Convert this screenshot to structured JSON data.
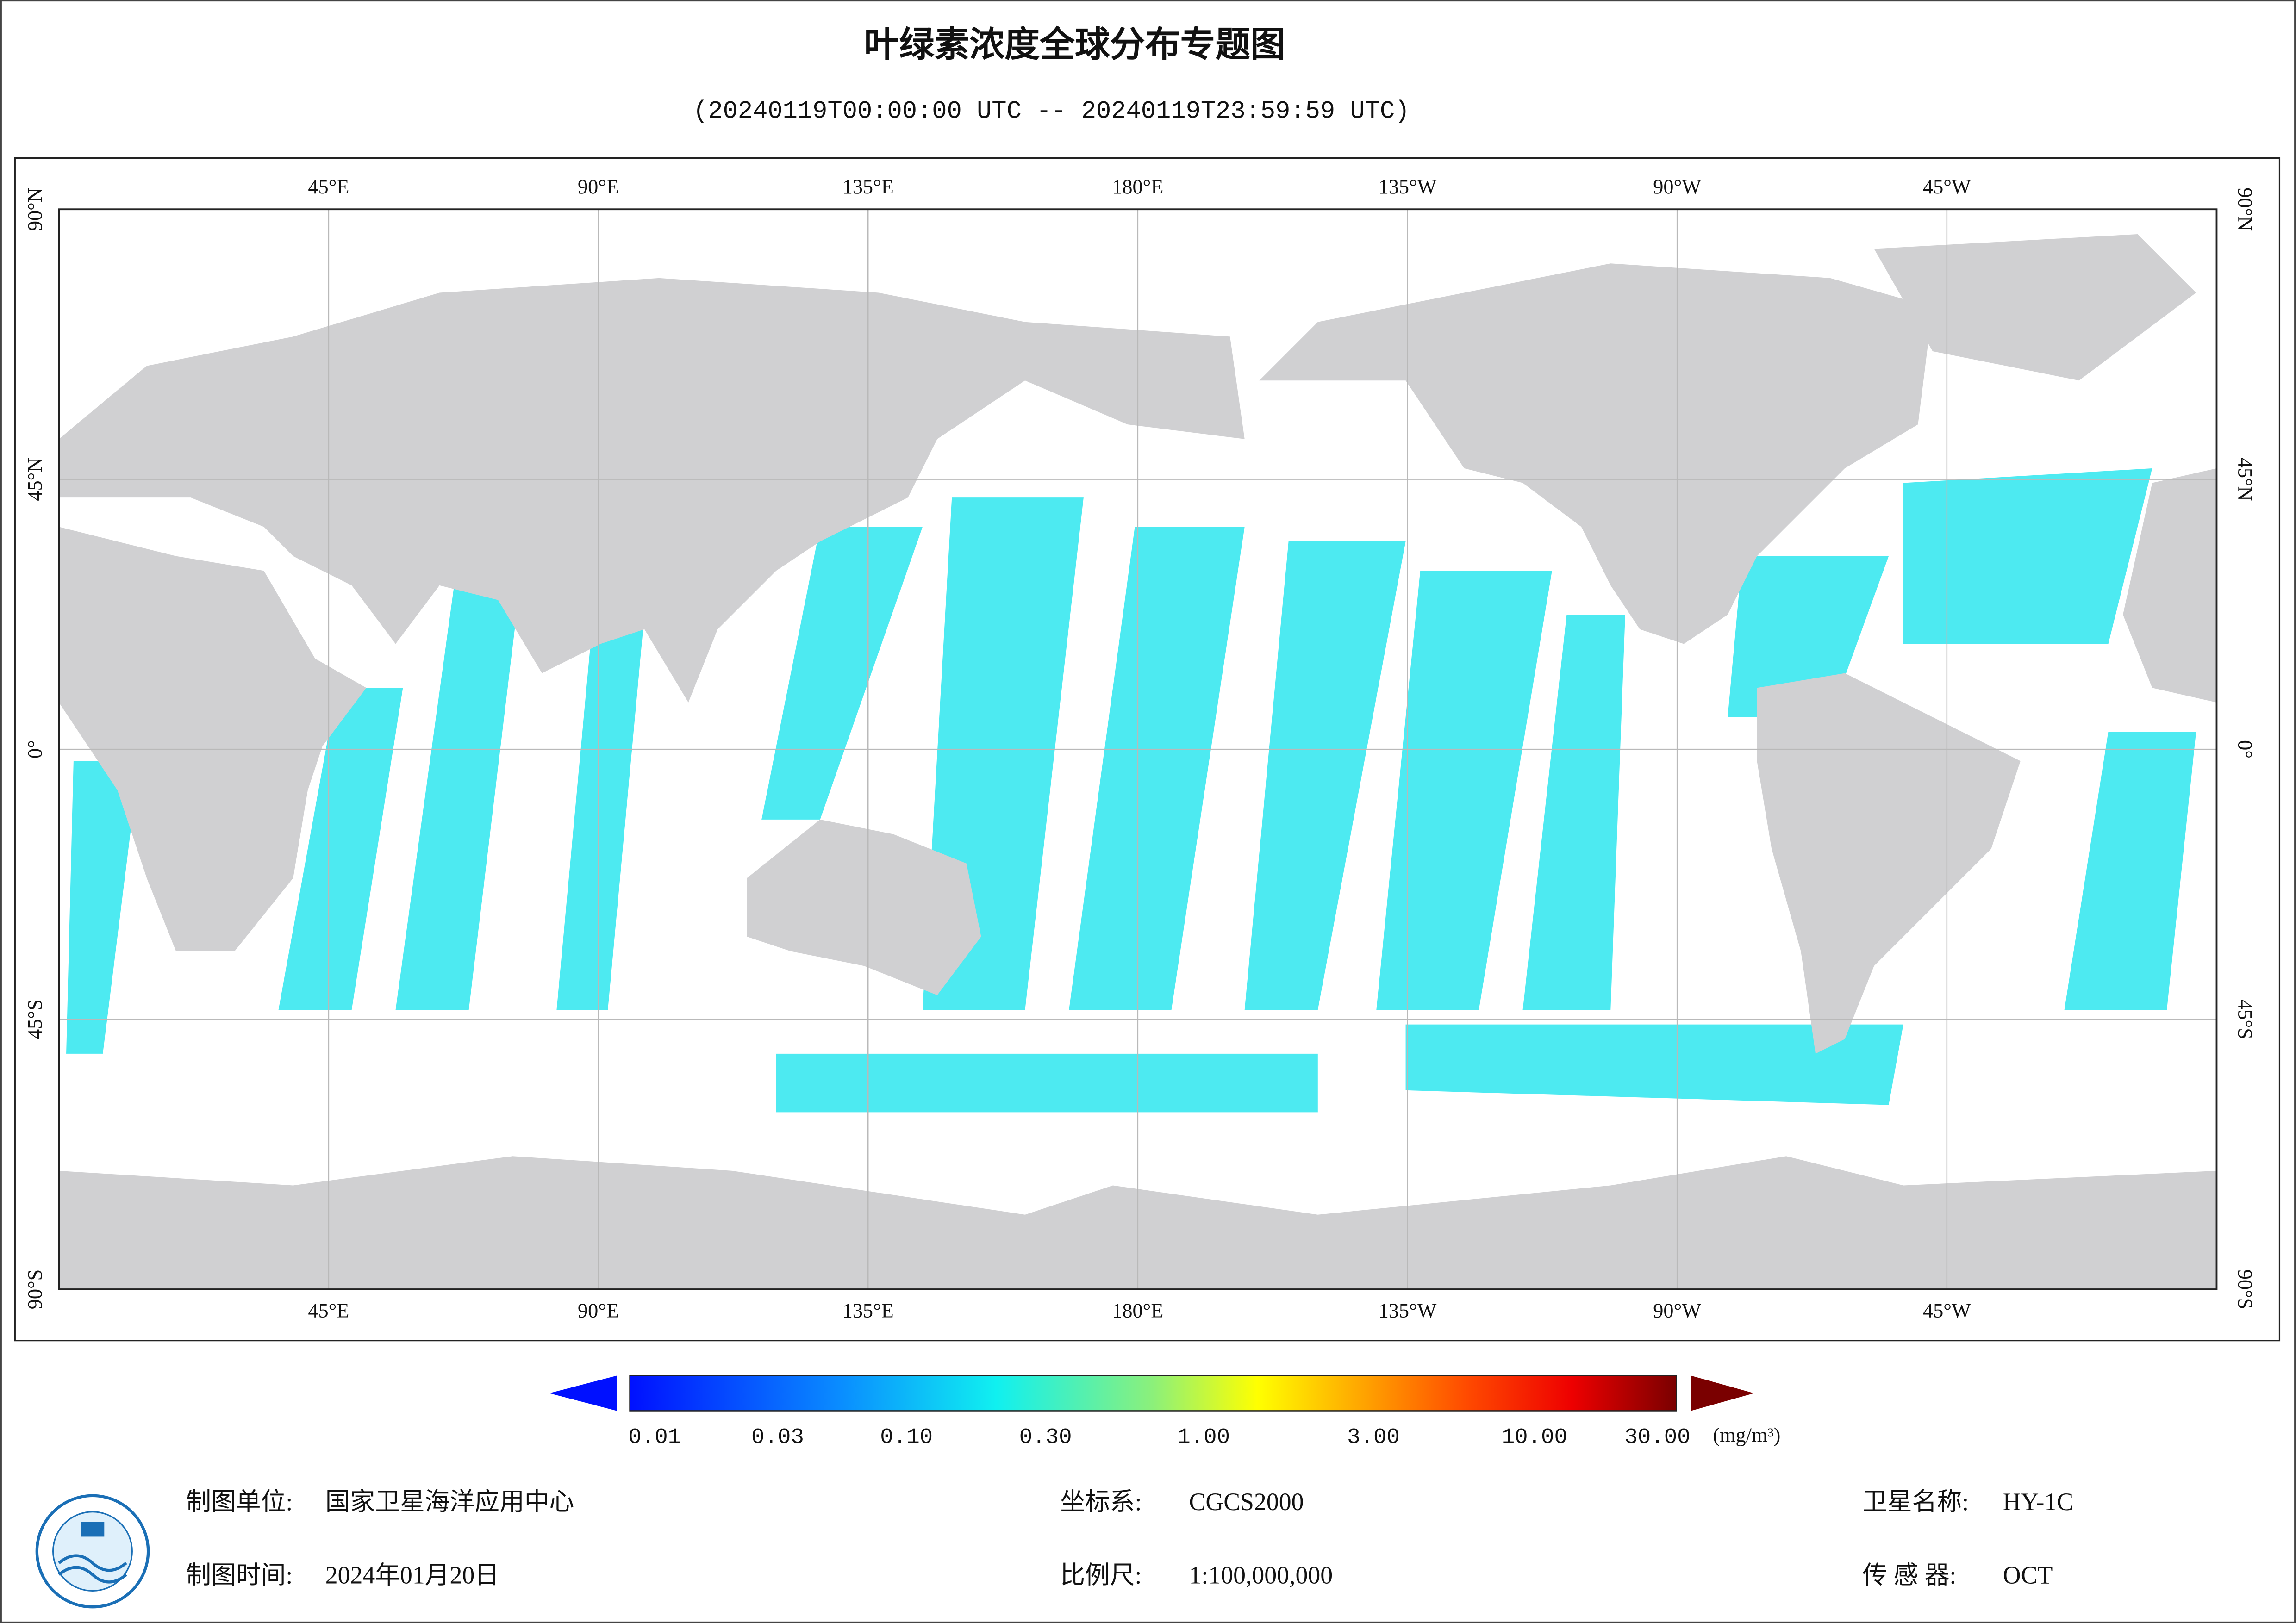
{
  "header": {
    "title": "叶绿素浓度全球分布专题图",
    "subtitle": "(20240119T00:00:00 UTC -- 20240119T23:59:59 UTC)"
  },
  "map": {
    "longitude_labels": [
      "45°E",
      "90°E",
      "135°E",
      "180°E",
      "135°W",
      "90°W",
      "45°W"
    ],
    "latitude_labels": [
      "90°N",
      "45°N",
      "0°",
      "45°S",
      "90°S"
    ]
  },
  "colorbar": {
    "labels": [
      "0.01",
      "0.03",
      "0.10",
      "0.30",
      "1.00",
      "3.00",
      "10.00",
      "30.00"
    ],
    "unit": "(mg/m³)"
  },
  "footer": {
    "unit_label": "制图单位:",
    "unit": "国家卫星海洋应用中心",
    "time_label": "制图时间:",
    "time": "2024年01月20日",
    "crs_label": "坐标系:",
    "crs": "CGCS2000",
    "scale_label": "比例尺:",
    "scale": "1:100,000,000",
    "satellite_label": "卫星名称:",
    "satellite": "HY-1C",
    "sensor_label": "传 感 器:",
    "sensor": "OCT"
  }
}
